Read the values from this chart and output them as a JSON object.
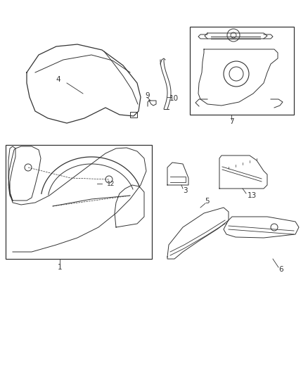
{
  "bg_color": "#ffffff",
  "line_color": "#333333",
  "label_color": "#333333",
  "fig_w": 4.39,
  "fig_h": 5.33,
  "dpi": 100,
  "label_fontsize": 7.5,
  "callout_fontsize": 7.0
}
